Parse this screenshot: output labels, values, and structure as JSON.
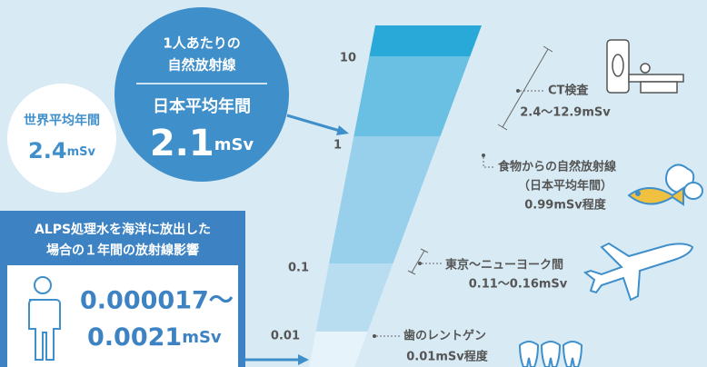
{
  "main_circle": {
    "heading": [
      "1人あたりの",
      "自然放射線"
    ],
    "label": "日本平均年間",
    "value": "2.1",
    "unit": "mSv"
  },
  "world_circle": {
    "label": "世界平均年間",
    "value": "2.4",
    "unit": "mSv"
  },
  "alps_box": {
    "heading": [
      "ALPS処理水を海洋に放出した",
      "場合の１年間の放射線影響"
    ],
    "value_lines": [
      "0.000017〜",
      "0.0021"
    ],
    "unit": "mSv"
  },
  "scale_labels": [
    "10",
    "1",
    "0.1",
    "0.01"
  ],
  "annotations": [
    {
      "lines": [
        "CT検査",
        "2.4〜12.9mSv"
      ]
    },
    {
      "lines": [
        "食物からの自然放射線",
        "（日本平均年間）",
        "0.99mSv程度"
      ]
    },
    {
      "lines": [
        "東京〜ニューヨーク間",
        "0.11〜0.16mSv"
      ]
    },
    {
      "lines": [
        "歯のレントゲン",
        "0.01mSv程度"
      ]
    }
  ]
}
